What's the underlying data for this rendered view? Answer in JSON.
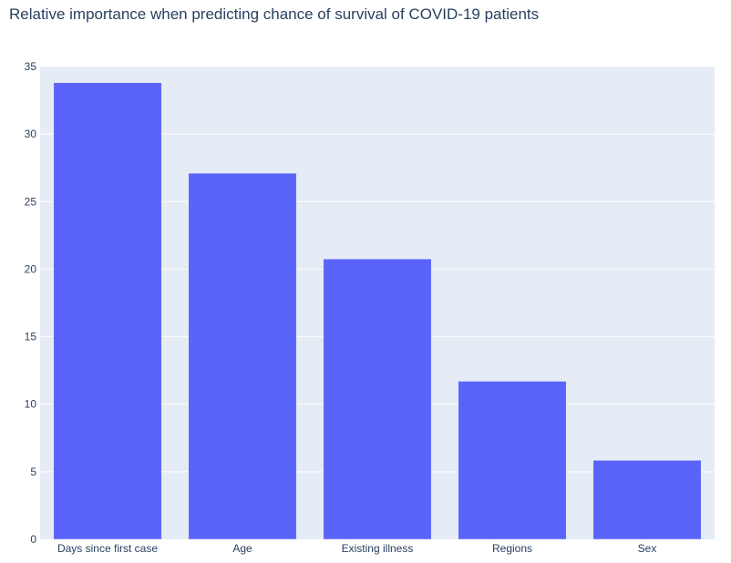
{
  "chart_data": {
    "type": "bar",
    "title": "Relative importance when predicting chance of survival of COVID-19 patients",
    "categories": [
      "Days since first case",
      "Age",
      "Existing illness",
      "Regions",
      "Sex"
    ],
    "values": [
      33.8,
      27.1,
      20.75,
      11.7,
      5.85
    ],
    "ylim": [
      0,
      35
    ],
    "yticks": [
      0,
      5,
      10,
      15,
      20,
      25,
      30,
      35
    ],
    "grid": true,
    "colors": {
      "bar": "#5a64fa",
      "plot_bg": "#e5ecf6",
      "grid": "#ffffff",
      "text": "#2a3f5f"
    }
  }
}
